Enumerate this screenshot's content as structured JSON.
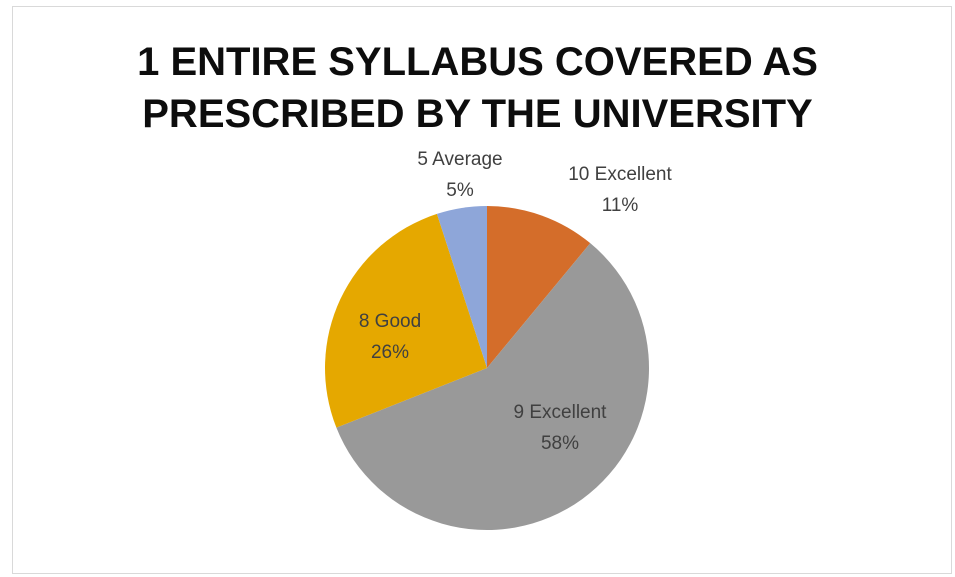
{
  "chart_data": {
    "type": "pie",
    "title_lines": [
      "1 ENTIRE SYLLABUS COVERED AS",
      "PRESCRIBED BY THE UNIVERSITY"
    ],
    "slices": [
      {
        "name": "10 Excellent",
        "value": 11,
        "label": "11%",
        "color": "#d46d2a"
      },
      {
        "name": "9 Excellent",
        "value": 58,
        "label": "58%",
        "color": "#999999"
      },
      {
        "name": "8 Good",
        "value": 26,
        "label": "26%",
        "color": "#e5a800"
      },
      {
        "name": "5 Average",
        "value": 5,
        "label": "5%",
        "color": "#8ea6d9"
      }
    ],
    "start_angle_deg": 0,
    "direction": "clockwise",
    "legend": "none",
    "data_labels": "category-and-percent"
  }
}
